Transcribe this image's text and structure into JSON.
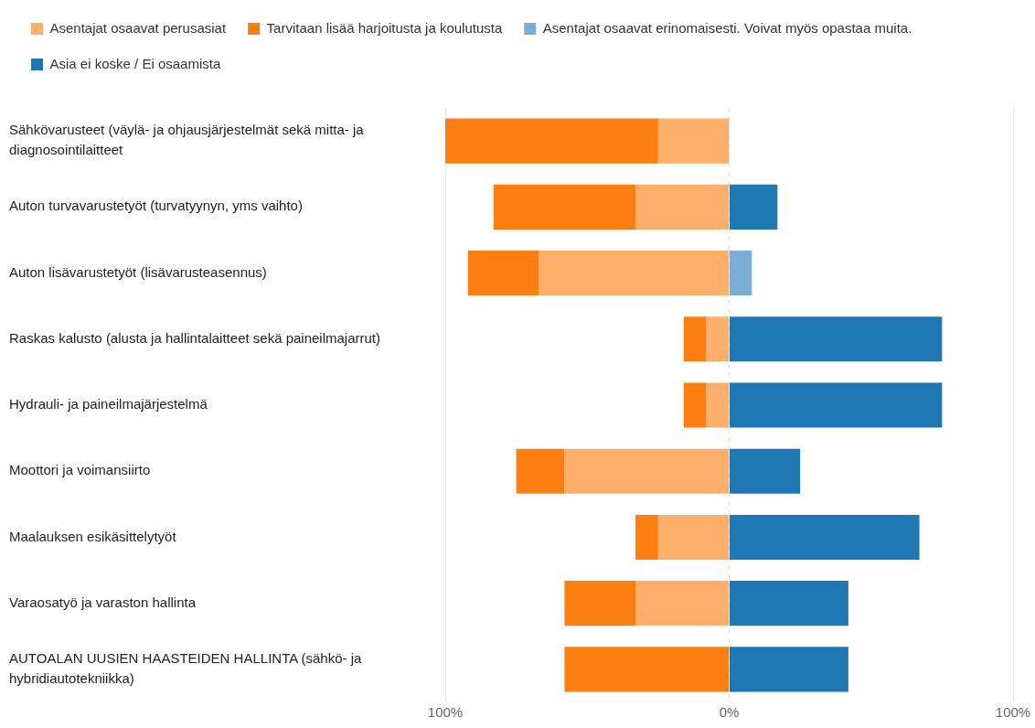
{
  "chart_data": {
    "type": "bar",
    "orientation": "horizontal",
    "stacked": true,
    "categories": [
      "Sähkövarusteet (väylä- ja ohjausjärjestelmät sekä mitta- ja diagnosointilaitteet",
      "Auton turvavarustetyöt (turvatyynyn, yms vaihto)",
      "Auton lisävarustetyöt (lisävarusteasennus)",
      "Raskas kalusto (alusta ja hallintalaitteet sekä paineilmajarrut)",
      "Hydrauli- ja paineilmajärjestelmä",
      "Moottori ja voimansiirto",
      "Maalauksen esikäsittelytyöt",
      "Varaosatyö ja varaston hallinta",
      "AUTOALAN UUSIEN HAASTEIDEN HALLINTA (sähkö- ja hybridiautotekniikka)"
    ],
    "series": [
      {
        "name": "Asentajat osaavat perusasiat",
        "color": "#ffae6b",
        "values": [
          -25,
          -33,
          -67,
          -8,
          -8,
          -58,
          -25,
          -33,
          0
        ]
      },
      {
        "name": "Tarvitaan lisää harjoitusta ja koulutusta",
        "color": "#fd7f11",
        "values": [
          -75,
          -50,
          -25,
          -8,
          -8,
          -17,
          -8,
          -25,
          -58
        ]
      },
      {
        "name": "Asentajat osaavat erinomaisesti. Voivat myös opastaa muita.",
        "color": "#7aaed6",
        "values": [
          0,
          0,
          8,
          0,
          0,
          0,
          0,
          0,
          0
        ]
      },
      {
        "name": "Asia ei koske / Ei osaamista",
        "color": "#1f77b4",
        "values": [
          0,
          17,
          0,
          75,
          75,
          25,
          67,
          42,
          42
        ]
      }
    ],
    "xlim": [
      -100,
      100
    ],
    "xticks": [
      {
        "value": -100,
        "label": "100%"
      },
      {
        "value": 0,
        "label": "0%"
      },
      {
        "value": 100,
        "label": "100%"
      }
    ],
    "grid": "x",
    "legend": "top left"
  }
}
